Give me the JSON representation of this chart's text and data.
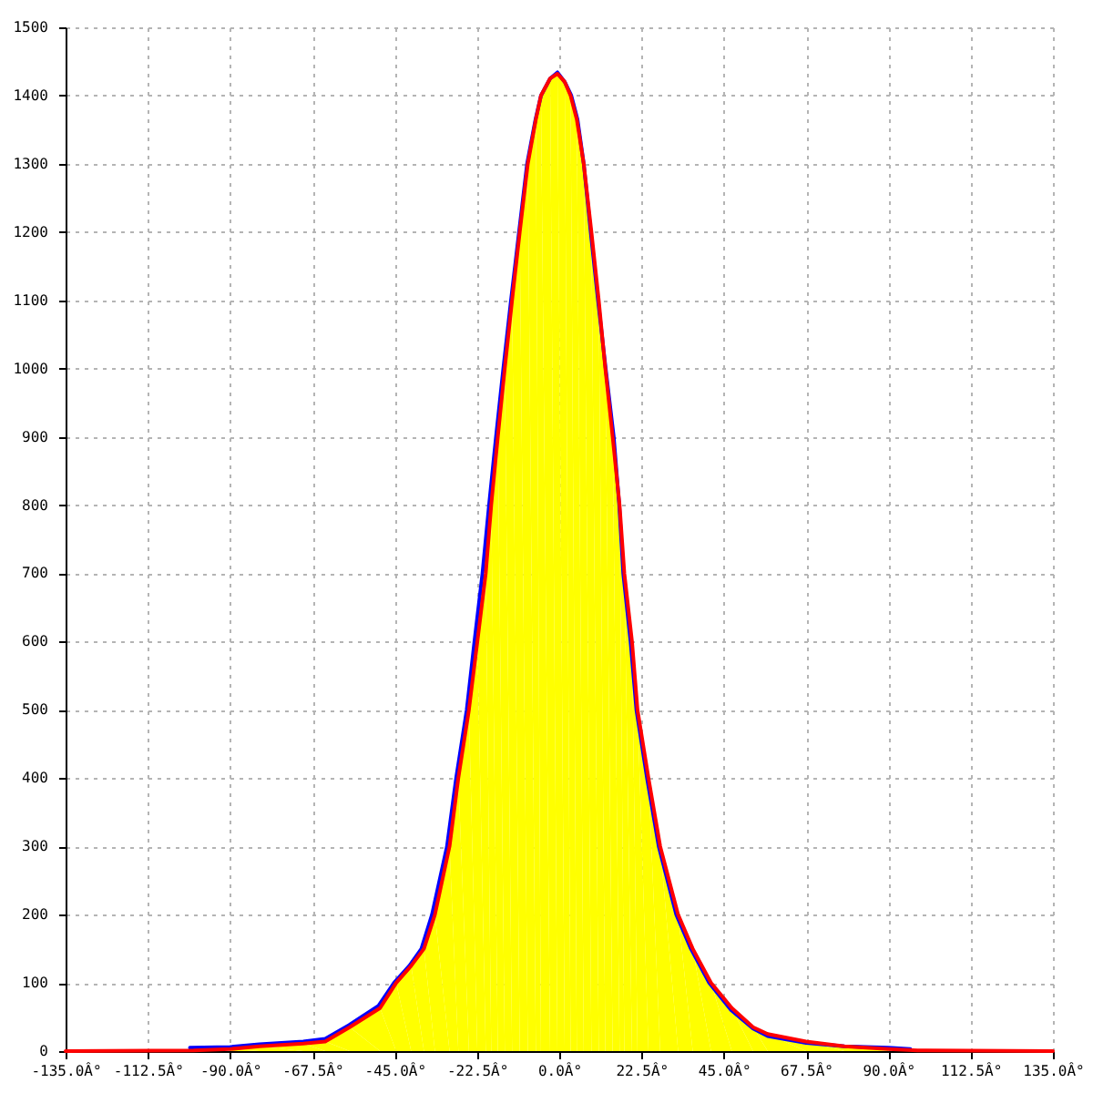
{
  "chart_data": {
    "type": "line",
    "xlim": [
      -135,
      135
    ],
    "xticks": [
      {
        "value": -135,
        "label": "-135.0Â°"
      },
      {
        "value": -112.5,
        "label": "-112.5Â°"
      },
      {
        "value": -90,
        "label": "-90.0Â°"
      },
      {
        "value": -67.5,
        "label": "-67.5Â°"
      },
      {
        "value": -45,
        "label": "-45.0Â°"
      },
      {
        "value": -22.5,
        "label": "-22.5Â°"
      },
      {
        "value": 0,
        "label": "0.0Â°"
      },
      {
        "value": 22.5,
        "label": "22.5Â°"
      },
      {
        "value": 45,
        "label": "45.0Â°"
      },
      {
        "value": 67.5,
        "label": "67.5Â°"
      },
      {
        "value": 90,
        "label": "90.0Â°"
      },
      {
        "value": 112.5,
        "label": "112.5Â°"
      },
      {
        "value": 135,
        "label": "135.0Â°"
      }
    ],
    "ylim": [
      0,
      1500
    ],
    "yticks": [
      0,
      100,
      200,
      300,
      400,
      500,
      600,
      700,
      800,
      900,
      1000,
      1100,
      1200,
      1300,
      1400,
      1500
    ],
    "grid": true,
    "series": [
      {
        "color": "#0000ff",
        "x": [
          -101,
          -90,
          -82,
          -70,
          -64,
          -57.5,
          -49.5,
          -45.2,
          -41,
          -37.7,
          -34.8,
          -30.7,
          -28.2,
          -25.3,
          -23.2,
          -21,
          -19.2,
          -17.3,
          -15.3,
          -13.2,
          -11,
          -8.8,
          -6.5,
          -5,
          -2.5,
          -0.5,
          1.5,
          3.3,
          5,
          6.7,
          8.6,
          10.6,
          12.7,
          14.9,
          16.4,
          17.5,
          19.5,
          21.1,
          24,
          27.2,
          32,
          36,
          41,
          47,
          53,
          57,
          67.5,
          78,
          90,
          96
        ],
        "values": [
          5,
          6,
          10,
          14,
          18,
          38,
          66,
          100,
          125,
          150,
          200,
          300,
          400,
          500,
          600,
          700,
          800,
          900,
          1000,
          1100,
          1200,
          1300,
          1365,
          1400,
          1425,
          1434,
          1420,
          1400,
          1365,
          1300,
          1200,
          1100,
          1000,
          900,
          800,
          700,
          600,
          500,
          400,
          300,
          200,
          150,
          100,
          60,
          33,
          22,
          12,
          7,
          5,
          3
        ]
      },
      {
        "color": "#ff0000",
        "x": [
          -135,
          -100,
          -90,
          -82,
          -70,
          -64,
          -57.3,
          -49,
          -44.6,
          -40.5,
          -37,
          -34,
          -30,
          -27.6,
          -24.7,
          -22.4,
          -20.1,
          -18.6,
          -16.8,
          -14.9,
          -12.9,
          -10.8,
          -8.6,
          -6.4,
          -5,
          -2.5,
          -0.5,
          1.5,
          3.1,
          4.8,
          6.7,
          8.8,
          10.8,
          12.6,
          14.6,
          16.5,
          17.8,
          19.9,
          21.4,
          24.4,
          27.6,
          32.5,
          36.5,
          41.5,
          47.2,
          53,
          57,
          67.5,
          78,
          90,
          98,
          135
        ],
        "values": [
          0,
          1,
          3,
          7,
          11,
          14,
          35,
          63,
          100,
          125,
          150,
          200,
          300,
          400,
          500,
          600,
          700,
          800,
          900,
          1000,
          1100,
          1200,
          1300,
          1365,
          1400,
          1425,
          1432,
          1420,
          1400,
          1365,
          1300,
          1200,
          1100,
          1000,
          900,
          800,
          700,
          600,
          500,
          400,
          300,
          200,
          150,
          100,
          63,
          35,
          25,
          14,
          7,
          3,
          1,
          0
        ]
      },
      {
        "type": "area",
        "color": "#ffff00",
        "x": [
          -90,
          -82,
          -70,
          -64,
          -57.3,
          -49,
          -44.6,
          -40.5,
          -37,
          -34,
          -30,
          -27.6,
          -24.7,
          -22.4,
          -20.1,
          -18.6,
          -16.8,
          -14.9,
          -12.9,
          -10.8,
          -8.6,
          -6.4,
          -5,
          -2.5,
          -0.5,
          1.5,
          3.1,
          4.8,
          6.7,
          8.8,
          10.8,
          12.6,
          14.6,
          16.5,
          17.8,
          19.9,
          21.4,
          24.4,
          27.6,
          32.5,
          36.5,
          41.5,
          47.2,
          53,
          57,
          67.5,
          78,
          90
        ],
        "values": [
          3,
          7,
          11,
          14,
          35,
          63,
          100,
          125,
          150,
          200,
          300,
          400,
          500,
          600,
          700,
          800,
          900,
          1000,
          1100,
          1200,
          1300,
          1365,
          1400,
          1425,
          1432,
          1420,
          1400,
          1365,
          1300,
          1200,
          1100,
          1000,
          900,
          800,
          700,
          600,
          500,
          400,
          300,
          200,
          150,
          100,
          63,
          35,
          25,
          14,
          7,
          3
        ]
      }
    ]
  }
}
